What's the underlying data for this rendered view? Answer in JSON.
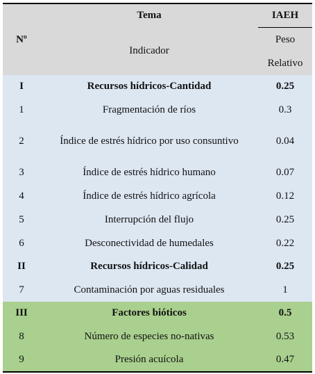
{
  "header": {
    "number": "Nº",
    "theme": "Tema",
    "indicator": "Indicador",
    "index": "IAEH",
    "weight": "Peso Relativo",
    "color": "#d9d9d9"
  },
  "groups": [
    {
      "id": "I",
      "name": "Recursos hídricos-Cantidad",
      "weight": 0.25,
      "color": "#dde7f2",
      "indicators": [
        {
          "id": "1",
          "name": "Fragmentación de ríos",
          "weight": 0.3
        },
        {
          "id": "2",
          "name": "Índice de estrés hídrico por uso consuntivo",
          "weight": 0.04
        },
        {
          "id": "3",
          "name": "Índice de estrés hídrico humano",
          "weight": 0.07
        },
        {
          "id": "4",
          "name": "Índice de estrés hídrico agrícola",
          "weight": 0.12
        },
        {
          "id": "5",
          "name": "Interrupción del flujo",
          "weight": 0.25
        },
        {
          "id": "6",
          "name": "Desconectividad de humedales",
          "weight": 0.22
        }
      ]
    },
    {
      "id": "II",
      "name": "Recursos hídricos-Calidad",
      "weight": 0.25,
      "color": "#dde7f2",
      "indicators": [
        {
          "id": "7",
          "name": "Contaminación por aguas residuales",
          "weight": 1
        }
      ]
    },
    {
      "id": "III",
      "name": "Factores bióticos",
      "weight": 0.5,
      "color": "#a9d08e",
      "indicators": [
        {
          "id": "8",
          "name": "Número de especies no-nativas",
          "weight": 0.53
        },
        {
          "id": "9",
          "name": "Presión acuícola",
          "weight": 0.47
        }
      ]
    }
  ]
}
